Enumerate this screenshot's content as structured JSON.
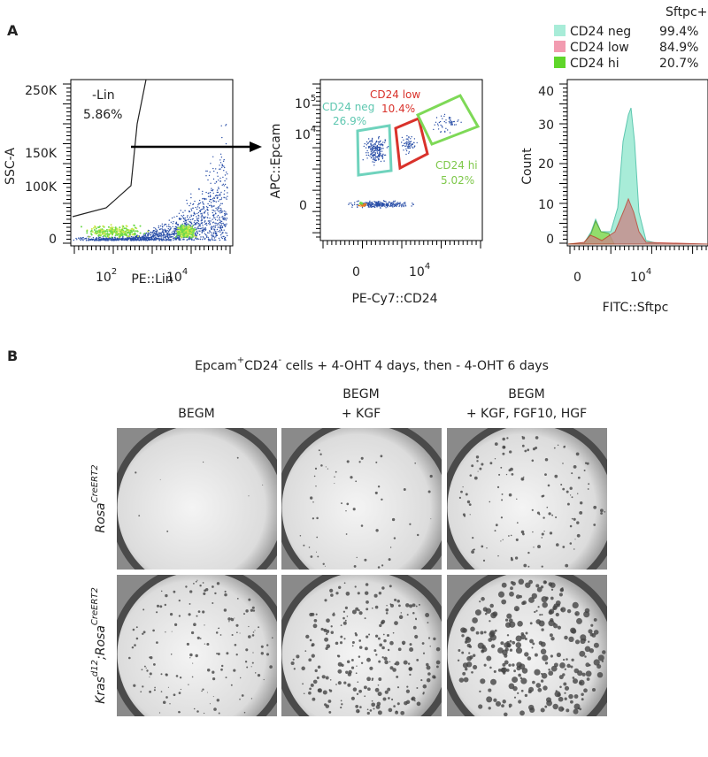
{
  "panel_a": {
    "label": "A",
    "plot1": {
      "y_label": "SSC-A",
      "x_label": "PE::Lin",
      "yticks": [
        "250K",
        "150K",
        "100K",
        "0"
      ],
      "xticks": [
        {
          "base": "10",
          "exp": "2"
        },
        {
          "base": "10",
          "exp": "4"
        }
      ],
      "gate_name": "-Lin",
      "gate_pct": "5.86%"
    },
    "plot2": {
      "y_label": "APC::Epcam",
      "x_label": "PE-Cy7::CD24",
      "yticks": [
        {
          "base": "10",
          "exp": "5"
        },
        {
          "base": "10",
          "exp": "4"
        },
        "0"
      ],
      "xticks": [
        "0",
        {
          "base": "10",
          "exp": "4"
        }
      ],
      "gates": [
        {
          "name": "CD24 neg",
          "pct": "26.9%"
        },
        {
          "name": "CD24 low",
          "pct": "10.4%"
        },
        {
          "name": "CD24 hi",
          "pct": "5.02%"
        }
      ]
    },
    "plot3": {
      "y_label": "Count",
      "x_label": "FITC::Sftpc",
      "yticks": [
        "40",
        "30",
        "20",
        "10",
        "0"
      ],
      "xticks": [
        "0",
        {
          "base": "10",
          "exp": "4"
        }
      ],
      "legend_title": "Sftpc+",
      "legend": [
        {
          "name": "CD24 neg",
          "value": "99.4%"
        },
        {
          "name": "CD24 low",
          "value": "84.9%"
        },
        {
          "name": "CD24 hi",
          "value": "20.7%"
        }
      ]
    }
  },
  "panel_b": {
    "label": "B",
    "title": {
      "t1": "Epcam",
      "s1": "+",
      "t2": "CD24",
      "s2": "-",
      "t3": " cells + 4-OHT 4 days, then - 4-OHT 6 days"
    },
    "columns": [
      [
        "BEGM"
      ],
      [
        "BEGM",
        "+ KGF"
      ],
      [
        "BEGM",
        "+ KGF, FGF10, HGF"
      ]
    ],
    "rows": [
      {
        "t1": "Rosa",
        "s1": "CreERT2"
      },
      {
        "t1": "Kras",
        "s1": "d12",
        "t2": ";Rosa",
        "s2": "CreERT2"
      }
    ]
  }
}
